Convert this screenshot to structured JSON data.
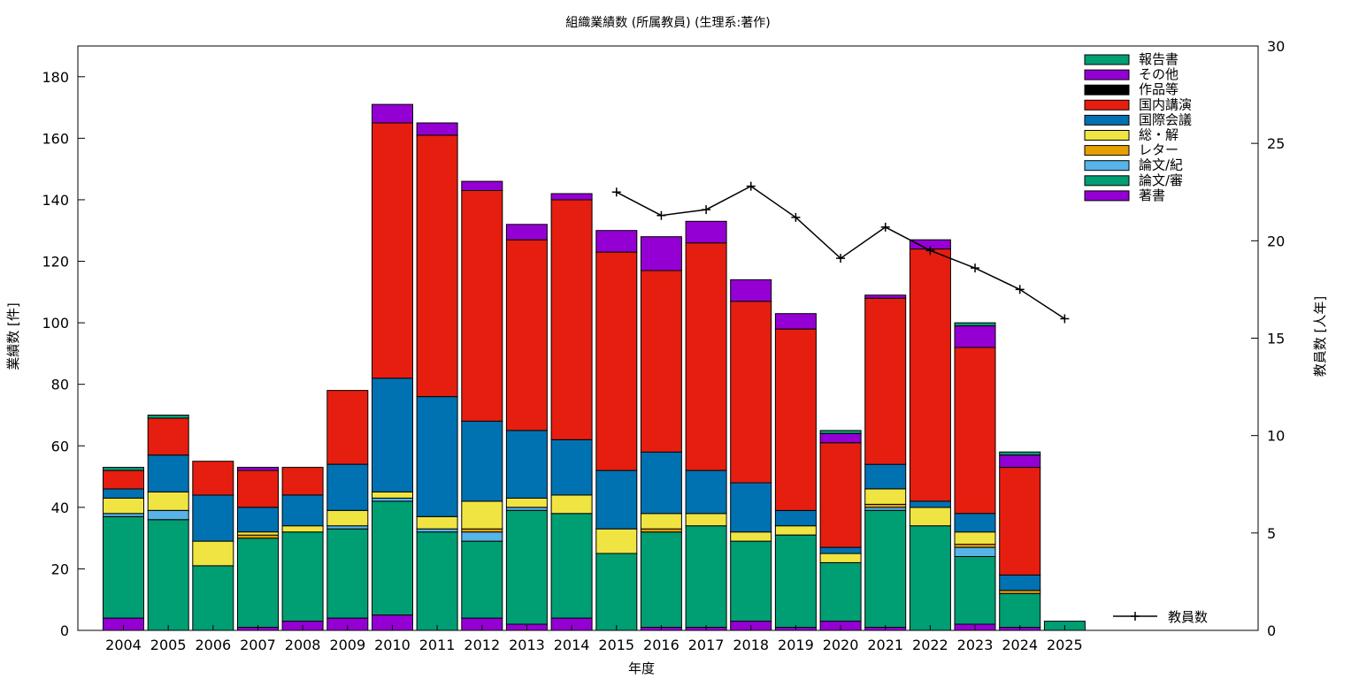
{
  "chart_data": {
    "type": "bar",
    "stacked": true,
    "title": "組織業績数 (所属教員) (生理系:著作)",
    "xlabel": "年度",
    "ylabel": "業績数 [件]",
    "y2label": "教員数 [人年]",
    "ylim": [
      0,
      190
    ],
    "y2lim": [
      0,
      30
    ],
    "yticks": [
      0,
      20,
      40,
      60,
      80,
      100,
      120,
      140,
      160,
      180
    ],
    "y2ticks": [
      0,
      5,
      10,
      15,
      20,
      25,
      30
    ],
    "grid": false,
    "legend_position": "top-right",
    "categories": [
      "2004",
      "2005",
      "2006",
      "2007",
      "2008",
      "2009",
      "2010",
      "2011",
      "2012",
      "2013",
      "2014",
      "2015",
      "2016",
      "2017",
      "2018",
      "2019",
      "2020",
      "2021",
      "2022",
      "2023",
      "2024",
      "2025"
    ],
    "series": [
      {
        "name": "著書",
        "color": "#9400d3",
        "values": [
          4,
          0,
          0,
          1,
          3,
          4,
          5,
          0,
          4,
          2,
          4,
          0,
          1,
          1,
          3,
          1,
          3,
          1,
          0,
          2,
          1,
          0
        ]
      },
      {
        "name": "論文/審",
        "color": "#009e73",
        "values": [
          33,
          36,
          21,
          29,
          29,
          29,
          37,
          32,
          25,
          37,
          34,
          25,
          31,
          33,
          26,
          30,
          19,
          38,
          34,
          22,
          11,
          3
        ]
      },
      {
        "name": "論文/紀",
        "color": "#56b4e9",
        "values": [
          1,
          3,
          0,
          0,
          0,
          1,
          1,
          1,
          3,
          1,
          0,
          0,
          0,
          0,
          0,
          0,
          0,
          1,
          0,
          3,
          0,
          0
        ]
      },
      {
        "name": "レター",
        "color": "#e69f00",
        "values": [
          0,
          0,
          0,
          1,
          0,
          0,
          0,
          0,
          1,
          0,
          0,
          0,
          1,
          0,
          0,
          0,
          0,
          1,
          0,
          1,
          1,
          0
        ]
      },
      {
        "name": "総・解",
        "color": "#f0e442",
        "values": [
          5,
          6,
          8,
          1,
          2,
          5,
          2,
          4,
          9,
          3,
          6,
          8,
          5,
          4,
          3,
          3,
          3,
          5,
          6,
          4,
          0,
          0
        ]
      },
      {
        "name": "国際会議",
        "color": "#0072b2",
        "values": [
          3,
          12,
          15,
          8,
          10,
          15,
          37,
          39,
          26,
          22,
          18,
          19,
          20,
          14,
          16,
          5,
          2,
          8,
          2,
          6,
          5,
          0
        ]
      },
      {
        "name": "国内講演",
        "color": "#e51e10",
        "values": [
          6,
          12,
          11,
          12,
          9,
          24,
          83,
          85,
          75,
          62,
          78,
          71,
          59,
          74,
          59,
          59,
          34,
          54,
          82,
          54,
          35,
          0
        ]
      },
      {
        "name": "作品等",
        "color": "#000000",
        "values": [
          0,
          0,
          0,
          0,
          0,
          0,
          0,
          0,
          0,
          0,
          0,
          0,
          0,
          0,
          0,
          0,
          0,
          0,
          0,
          0,
          0,
          0
        ]
      },
      {
        "name": "その他",
        "color": "#9400d3",
        "values": [
          0,
          0,
          0,
          1,
          0,
          0,
          6,
          4,
          3,
          5,
          2,
          7,
          11,
          7,
          7,
          5,
          3,
          1,
          3,
          7,
          4,
          0
        ]
      },
      {
        "name": "報告書",
        "color": "#009e73",
        "values": [
          1,
          1,
          0,
          0,
          0,
          0,
          0,
          0,
          0,
          0,
          0,
          0,
          0,
          0,
          0,
          0,
          1,
          0,
          0,
          1,
          1,
          0
        ]
      }
    ],
    "line_series": {
      "name": "教員数",
      "color": "#000000",
      "axis": "y2",
      "x": [
        "2015",
        "2016",
        "2017",
        "2018",
        "2019",
        "2020",
        "2021",
        "2022",
        "2023",
        "2024",
        "2025"
      ],
      "values": [
        22.5,
        21.3,
        21.6,
        22.8,
        21.2,
        19.1,
        20.7,
        19.5,
        18.6,
        17.5,
        16.0
      ]
    }
  }
}
